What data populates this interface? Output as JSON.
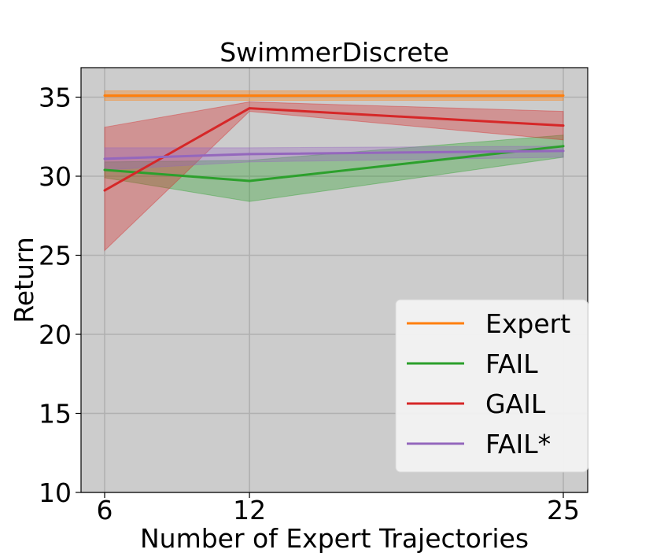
{
  "chart_data": {
    "type": "line",
    "title": "SwimmerDiscrete",
    "xlabel": "Number of Expert Trajectories",
    "ylabel": "Return",
    "x": [
      6,
      12,
      25
    ],
    "xticks": [
      "6",
      "12",
      "25"
    ],
    "yticks": [
      10,
      15,
      20,
      25,
      30,
      35
    ],
    "xlim": [
      6,
      25
    ],
    "ylim": [
      10,
      37
    ],
    "grid": true,
    "background": "#cccccc",
    "legend_position": "lower-right",
    "series": [
      {
        "name": "Expert",
        "color": "#ff7f0e",
        "values": [
          35.1,
          35.1,
          35.1
        ],
        "lower": [
          34.8,
          34.8,
          34.8
        ],
        "upper": [
          35.4,
          35.4,
          35.4
        ]
      },
      {
        "name": "FAIL",
        "color": "#2ca02c",
        "values": [
          30.4,
          29.7,
          31.9
        ],
        "lower": [
          29.9,
          28.4,
          31.2
        ],
        "upper": [
          30.9,
          31.0,
          32.6
        ]
      },
      {
        "name": "GAIL",
        "color": "#d62728",
        "values": [
          29.1,
          34.3,
          33.2
        ],
        "lower": [
          25.3,
          34.1,
          32.3
        ],
        "upper": [
          33.1,
          34.7,
          34.1
        ]
      },
      {
        "name": "FAIL*",
        "color": "#9467bd",
        "values": [
          31.1,
          31.4,
          31.6
        ],
        "lower": [
          30.4,
          30.9,
          31.2
        ],
        "upper": [
          31.8,
          31.8,
          31.9
        ]
      }
    ]
  }
}
